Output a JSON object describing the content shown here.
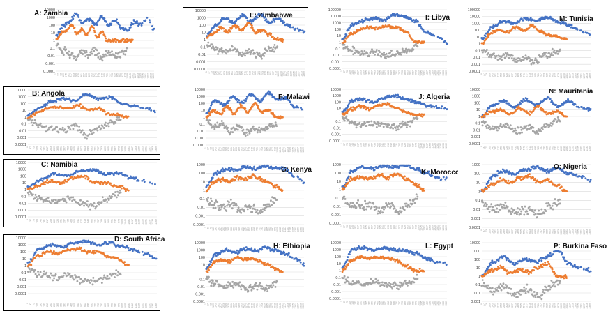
{
  "figure": {
    "colors": {
      "series1": "#4472C4",
      "series2": "#ED7D31",
      "series3": "#A5A5A5",
      "grid": "#D9D9D9",
      "text": "#111111"
    },
    "y_scale": "log",
    "ytick_labels": [
      "100000",
      "10000",
      "1000",
      "100",
      "10",
      "1",
      "0.1",
      "0.01",
      "0.001",
      "0.0001"
    ],
    "xtick_labels": [
      "1",
      "37",
      "73",
      "109",
      "145",
      "181",
      "217",
      "253",
      "289",
      "325",
      "361",
      "397",
      "433",
      "469",
      "505",
      "541",
      "577",
      "613",
      "649",
      "685",
      "721",
      "757",
      "793",
      "829",
      "865",
      "901",
      "937",
      "973",
      "1009",
      "1045",
      "1081",
      "1117",
      "1153",
      "1189",
      "1225",
      "1261",
      "1297",
      "1333",
      "1369"
    ]
  },
  "chart_data": [
    {
      "type": "scatter",
      "title": "A: Zambia",
      "yscale": "log",
      "ylim": [
        0.0001,
        10000
      ],
      "grid": true,
      "legend": "none",
      "series": [
        {
          "values": [
            4,
            80,
            300,
            3000,
            200,
            600,
            150,
            1200,
            100,
            400,
            50,
            20,
            300,
            100,
            800,
            30
          ]
        },
        {
          "values": [
            1.5,
            10,
            20,
            100,
            10,
            30,
            5,
            80,
            3,
            15,
            1,
            1,
            1,
            1,
            1,
            1
          ]
        },
        {
          "values": [
            0.3,
            0.05,
            0.02,
            0.005,
            0.03,
            0.01,
            0.05,
            0.003,
            0.02,
            0.01,
            0.02,
            0.05
          ]
        }
      ]
    },
    {
      "type": "scatter",
      "title": "E: Zimbabwe",
      "yscale": "log",
      "ylim": [
        0.0001,
        10000
      ],
      "grid": true,
      "legend": "none",
      "series": [
        {
          "values": [
            5,
            100,
            1000,
            200,
            2000,
            300,
            3000,
            200,
            800,
            100,
            30,
            10
          ]
        },
        {
          "values": [
            2,
            10,
            50,
            10,
            100,
            20,
            200,
            10,
            20,
            5,
            1,
            1
          ]
        },
        {
          "values": [
            0.3,
            0.05,
            0.02,
            0.05,
            0.01,
            0.03,
            0.005,
            0.05,
            0.1
          ]
        }
      ]
    },
    {
      "type": "scatter",
      "title": "I: Libya",
      "yscale": "log",
      "ylim": [
        0.0001,
        100000
      ],
      "grid": true,
      "legend": "none",
      "series": [
        {
          "values": [
            3,
            500,
            2000,
            5000,
            3000,
            20000,
            8000,
            2000,
            30,
            10,
            1
          ]
        },
        {
          "values": [
            1,
            20,
            100,
            200,
            150,
            300,
            200,
            50,
            1,
            1
          ]
        },
        {
          "values": [
            0.3,
            0.05,
            0.02,
            0.03,
            0.01,
            0.02,
            0.05,
            0.3
          ]
        }
      ]
    },
    {
      "type": "scatter",
      "title": "M: Tunisia",
      "yscale": "log",
      "ylim": [
        0.0001,
        100000
      ],
      "grid": true,
      "legend": "none",
      "series": [
        {
          "values": [
            5,
            300,
            2000,
            1000,
            5000,
            3000,
            8000,
            2000,
            500,
            100,
            30
          ]
        },
        {
          "values": [
            1,
            30,
            100,
            50,
            300,
            100,
            500,
            50,
            20,
            10,
            5
          ]
        },
        {
          "values": [
            0.1,
            0.02,
            0.01,
            0.02,
            0.005,
            0.01,
            0.002,
            0.02,
            0.05,
            0.1
          ]
        }
      ]
    },
    {
      "type": "scatter",
      "title": "B: Angola",
      "yscale": "log",
      "ylim": [
        0.0001,
        10000
      ],
      "grid": true,
      "legend": "none",
      "series": [
        {
          "values": [
            2,
            20,
            200,
            500,
            300,
            2000,
            500,
            800,
            100,
            50,
            20,
            5
          ]
        },
        {
          "values": [
            1,
            5,
            20,
            30,
            20,
            50,
            10,
            20,
            3,
            2,
            1
          ]
        },
        {
          "values": [
            0.5,
            0.05,
            0.02,
            0.01,
            0.05,
            0.003,
            0.02,
            0.1,
            0.5
          ]
        }
      ]
    },
    {
      "type": "scatter",
      "title": "F: Malawi",
      "yscale": "log",
      "ylim": [
        0.0001,
        10000
      ],
      "grid": true,
      "legend": "none",
      "series": [
        {
          "values": [
            3,
            300,
            50,
            1000,
            100,
            2000,
            200,
            3000,
            300,
            500,
            30,
            10
          ]
        },
        {
          "values": [
            1,
            10,
            3,
            30,
            3,
            50,
            5,
            100,
            5,
            10,
            1,
            1
          ]
        },
        {
          "values": [
            0.5,
            0.05,
            0.1,
            0.01,
            0.05,
            0.005,
            0.02,
            0.01,
            0.05,
            0.1
          ]
        }
      ]
    },
    {
      "type": "scatter",
      "title": "J: Algeria",
      "yscale": "log",
      "ylim": [
        0.0001,
        10000
      ],
      "grid": true,
      "legend": "none",
      "series": [
        {
          "values": [
            3,
            200,
            300,
            100,
            500,
            1000,
            300,
            100,
            30,
            20,
            10
          ]
        },
        {
          "values": [
            1,
            10,
            20,
            10,
            30,
            50,
            10,
            3,
            1,
            1
          ]
        },
        {
          "values": [
            0.3,
            0.05,
            0.03,
            0.05,
            0.02,
            0.01,
            0.05,
            0.3
          ]
        }
      ]
    },
    {
      "type": "scatter",
      "title": "N: Mauritania",
      "yscale": "log",
      "ylim": [
        0.0001,
        10000
      ],
      "grid": true,
      "legend": "none",
      "series": [
        {
          "values": [
            1,
            50,
            200,
            20,
            300,
            50,
            500,
            30,
            200,
            20,
            10
          ]
        },
        {
          "values": [
            1,
            5,
            10,
            2,
            20,
            3,
            30,
            2,
            5,
            1
          ]
        },
        {
          "values": [
            0.1,
            0.02,
            0.05,
            0.01,
            0.03,
            0.005,
            0.05,
            0.3
          ]
        }
      ]
    },
    {
      "type": "scatter",
      "title": "C: Namibia",
      "yscale": "log",
      "ylim": [
        0.0001,
        10000
      ],
      "grid": true,
      "legend": "none",
      "series": [
        {
          "values": [
            2,
            30,
            200,
            100,
            500,
            1000,
            200,
            300,
            50,
            20,
            5
          ]
        },
        {
          "values": [
            1,
            5,
            20,
            10,
            50,
            100,
            10,
            10,
            3,
            1
          ]
        },
        {
          "values": [
            0.3,
            0.05,
            0.02,
            0.05,
            0.01,
            0.005,
            0.05,
            0.3
          ]
        }
      ]
    },
    {
      "type": "scatter",
      "title": "G: Kenya",
      "yscale": "log",
      "ylim": [
        0.0001,
        1000
      ],
      "grid": true,
      "legend": "none",
      "series": [
        {
          "values": [
            3,
            100,
            300,
            200,
            500,
            300,
            800,
            400,
            300,
            50,
            10
          ]
        },
        {
          "values": [
            1,
            10,
            20,
            10,
            30,
            20,
            50,
            20,
            10,
            3,
            1
          ]
        },
        {
          "values": [
            0.1,
            0.02,
            0.01,
            0.02,
            0.005,
            0.01,
            0.003,
            0.02,
            0.1
          ]
        }
      ]
    },
    {
      "type": "scatter",
      "title": "K: Morocco",
      "yscale": "log",
      "ylim": [
        0.0001,
        1000
      ],
      "grid": true,
      "legend": "none",
      "series": [
        {
          "values": [
            2,
            200,
            500,
            300,
            800,
            500,
            1000,
            300,
            100,
            30,
            20
          ]
        },
        {
          "values": [
            1,
            20,
            30,
            20,
            50,
            30,
            80,
            20,
            5,
            1
          ]
        },
        {
          "values": [
            0.1,
            0.02,
            0.01,
            0.02,
            0.005,
            0.01,
            0.003,
            0.02,
            0.1
          ]
        }
      ]
    },
    {
      "type": "scatter",
      "title": "O: Nigeria",
      "yscale": "log",
      "ylim": [
        0.0001,
        1000
      ],
      "grid": true,
      "legend": "none",
      "series": [
        {
          "values": [
            1,
            50,
            200,
            100,
            300,
            500,
            200,
            400,
            100,
            50,
            20
          ]
        },
        {
          "values": [
            1,
            5,
            20,
            10,
            30,
            50,
            10,
            20,
            5,
            1
          ]
        },
        {
          "values": [
            0.05,
            0.01,
            0.02,
            0.005,
            0.01,
            0.003,
            0.02,
            0.05
          ]
        }
      ]
    },
    {
      "type": "scatter",
      "title": "D: South Africa",
      "yscale": "log",
      "ylim": [
        1e-05,
        10000
      ],
      "grid": true,
      "legend": "none",
      "series": [
        {
          "values": [
            3,
            300,
            1000,
            500,
            2000,
            3000,
            1000,
            2000,
            500,
            200,
            50,
            10
          ]
        },
        {
          "values": [
            1,
            30,
            100,
            50,
            200,
            300,
            100,
            100,
            20,
            10,
            1
          ]
        },
        {
          "values": [
            0.3,
            0.05,
            0.02,
            0.05,
            0.01,
            0.005,
            0.02,
            0.1
          ]
        }
      ]
    },
    {
      "type": "scatter",
      "title": "H: Ethiopia",
      "yscale": "log",
      "ylim": [
        0.0001,
        10000
      ],
      "grid": true,
      "legend": "none",
      "series": [
        {
          "values": [
            3,
            300,
            1000,
            500,
            1500,
            800,
            2000,
            1000,
            300,
            100,
            10
          ]
        },
        {
          "values": [
            1,
            20,
            50,
            30,
            100,
            50,
            80,
            30,
            10,
            3,
            1
          ]
        },
        {
          "values": [
            0.1,
            0.02,
            0.01,
            0.02,
            0.005,
            0.01,
            0.005,
            0.05
          ]
        }
      ]
    },
    {
      "type": "scatter",
      "title": "L: Egypt",
      "yscale": "log",
      "ylim": [
        0.0001,
        10000
      ],
      "grid": true,
      "legend": "none",
      "series": [
        {
          "values": [
            3,
            1000,
            2000,
            1000,
            1500,
            1000,
            800,
            300,
            50,
            20,
            10
          ]
        },
        {
          "values": [
            1,
            30,
            100,
            50,
            80,
            50,
            30,
            5,
            1,
            1
          ]
        },
        {
          "values": [
            0.1,
            0.02,
            0.01,
            0.02,
            0.01,
            0.005,
            0.02,
            0.1
          ]
        }
      ]
    },
    {
      "type": "scatter",
      "title": "P: Burkina Faso",
      "yscale": "log",
      "ylim": [
        0.001,
        10000
      ],
      "grid": true,
      "legend": "none",
      "series": [
        {
          "values": [
            1,
            50,
            200,
            30,
            100,
            50,
            200,
            1000,
            30,
            10,
            5
          ]
        },
        {
          "values": [
            1,
            5,
            10,
            2,
            5,
            3,
            10,
            30,
            1,
            1
          ]
        },
        {
          "values": [
            0.1,
            0.02,
            0.05,
            0.01,
            0.03,
            0.005,
            0.05,
            0.2
          ]
        }
      ]
    }
  ]
}
